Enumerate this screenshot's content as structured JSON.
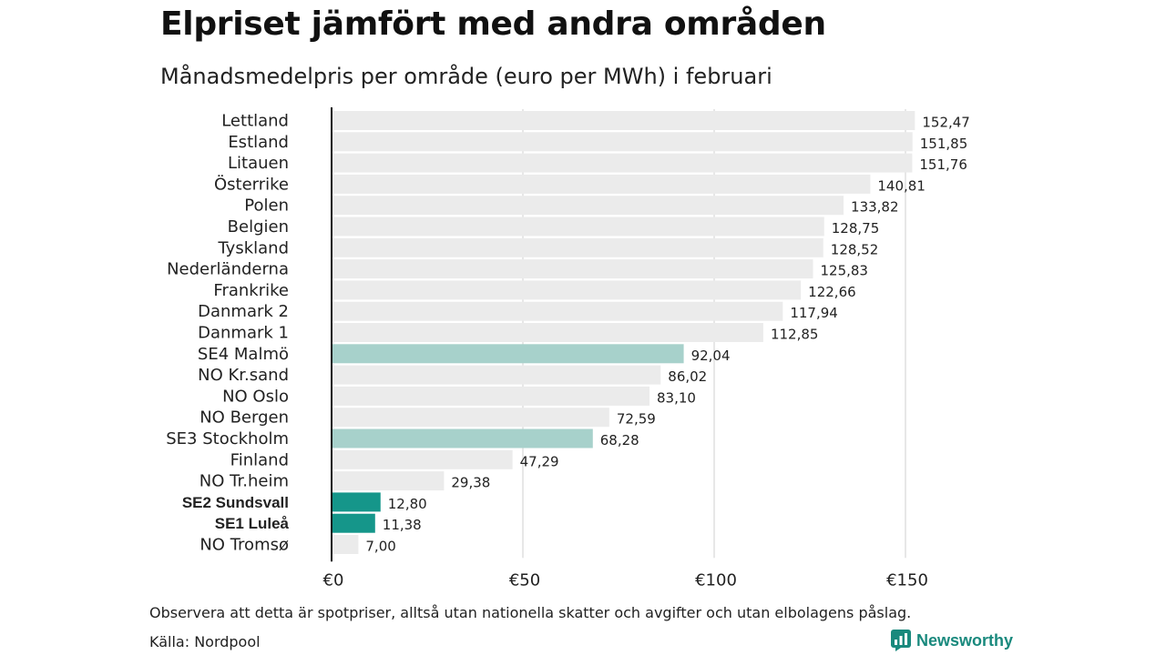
{
  "header": {
    "title": "Elpriset jämfört med andra områden",
    "subtitle": "Månadsmedelpris per område (euro per MWh) i februari"
  },
  "footer": {
    "note": "Observera att detta är spotpriser, alltså utan nationella skatter och avgifter och utan elbolagens påslag.",
    "source": "Källa: Nordpool",
    "brand": "Newsworthy"
  },
  "colors": {
    "default_bar": "#ebebeb",
    "light_highlight": "#a7d1cb",
    "strong_highlight": "#15968a",
    "grid": "#cfcfcf",
    "axis": "#111111",
    "brand": "#19897d"
  },
  "chart_data": {
    "type": "bar",
    "orientation": "horizontal",
    "title": "Elpriset jämfört med andra områden",
    "subtitle": "Månadsmedelpris per område (euro per MWh) i februari",
    "xlim": [
      0,
      160
    ],
    "xticks": [
      0,
      50,
      100,
      150
    ],
    "xtick_labels": [
      "€0",
      "€50",
      "€100",
      "€150"
    ],
    "grid": "vertical",
    "categories": [
      "Lettland",
      "Estland",
      "Litauen",
      "Österrike",
      "Polen",
      "Belgien",
      "Tyskland",
      "Nederländerna",
      "Frankrike",
      "Danmark 2",
      "Danmark 1",
      "SE4 Malmö",
      "NO Kr.sand",
      "NO Oslo",
      "NO Bergen",
      "SE3 Stockholm",
      "Finland",
      "NO Tr.heim",
      "SE2 Sundsvall",
      "SE1 Luleå",
      "NO Tromsø"
    ],
    "values": [
      152.47,
      151.85,
      151.76,
      140.81,
      133.82,
      128.75,
      128.52,
      125.83,
      122.66,
      117.94,
      112.85,
      92.04,
      86.02,
      83.1,
      72.59,
      68.28,
      47.29,
      29.38,
      12.8,
      11.38,
      7.0
    ],
    "value_labels": [
      "152,47",
      "151,85",
      "151,76",
      "140,81",
      "133,82",
      "128,75",
      "128,52",
      "125,83",
      "122,66",
      "117,94",
      "112,85",
      "92,04",
      "86,02",
      "83,10",
      "72,59",
      "68,28",
      "47,29",
      "29,38",
      "12,80",
      "11,38",
      "7,00"
    ],
    "highlight": [
      "none",
      "none",
      "none",
      "none",
      "none",
      "none",
      "none",
      "none",
      "none",
      "none",
      "none",
      "light",
      "none",
      "none",
      "none",
      "light",
      "none",
      "none",
      "strong",
      "strong",
      "none"
    ]
  }
}
